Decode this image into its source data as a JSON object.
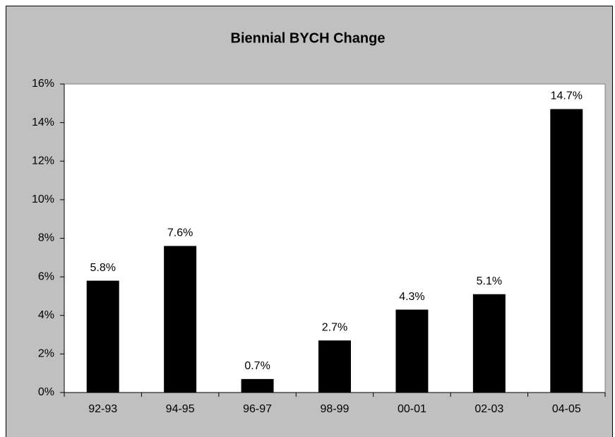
{
  "chart_data": {
    "type": "bar",
    "title": "Biennial BYCH Change",
    "categories": [
      "92-93",
      "94-95",
      "96-97",
      "98-99",
      "00-01",
      "02-03",
      "04-05"
    ],
    "values": [
      5.8,
      7.6,
      0.7,
      2.7,
      4.3,
      5.1,
      14.7
    ],
    "value_labels": [
      "5.8%",
      "7.6%",
      "0.7%",
      "2.7%",
      "4.3%",
      "5.1%",
      "14.7%"
    ],
    "color": "#000000",
    "ylim": [
      0,
      16
    ],
    "yticks": [
      {
        "value": 0,
        "label": "0%"
      },
      {
        "value": 2,
        "label": "2%"
      },
      {
        "value": 4,
        "label": "4%"
      },
      {
        "value": 6,
        "label": "6%"
      },
      {
        "value": 8,
        "label": "8%"
      },
      {
        "value": 10,
        "label": "10%"
      },
      {
        "value": 12,
        "label": "12%"
      },
      {
        "value": 14,
        "label": "14%"
      },
      {
        "value": 16,
        "label": "16%"
      }
    ],
    "grid": false
  }
}
